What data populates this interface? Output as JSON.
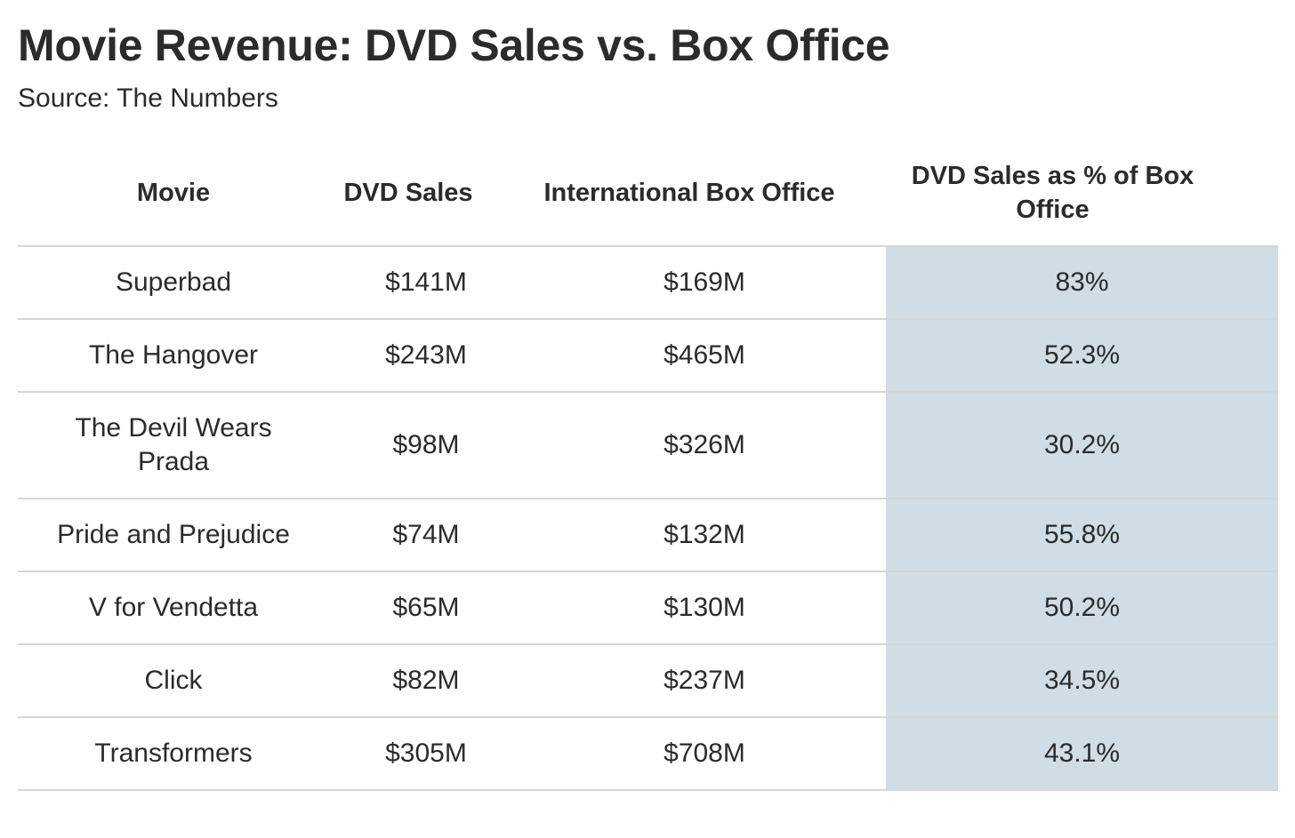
{
  "header": {
    "title": "Movie Revenue: DVD Sales vs. Box Office",
    "subtitle": "Source: The Numbers"
  },
  "table": {
    "columns": [
      "Movie",
      "DVD Sales",
      "International Box Office",
      "DVD Sales as % of Box Office"
    ],
    "rows": [
      {
        "movie": "Superbad",
        "dvd_sales": "$141M",
        "intl_box_office": "$169M",
        "pct": "83%"
      },
      {
        "movie": "The Hangover",
        "dvd_sales": "$243M",
        "intl_box_office": "$465M",
        "pct": "52.3%"
      },
      {
        "movie": "The Devil Wears Prada",
        "dvd_sales": "$98M",
        "intl_box_office": "$326M",
        "pct": "30.2%"
      },
      {
        "movie": "Pride and Prejudice",
        "dvd_sales": "$74M",
        "intl_box_office": "$132M",
        "pct": "55.8%"
      },
      {
        "movie": "V for Vendetta",
        "dvd_sales": "$65M",
        "intl_box_office": "$130M",
        "pct": "50.2%"
      },
      {
        "movie": "Click",
        "dvd_sales": "$82M",
        "intl_box_office": "$237M",
        "pct": "34.5%"
      },
      {
        "movie": "Transformers",
        "dvd_sales": "$305M",
        "intl_box_office": "$708M",
        "pct": "43.1%"
      }
    ]
  },
  "colors": {
    "highlight_column": "#d0dde4",
    "text": "#2b2b2b",
    "rule": "#d6d6d6"
  },
  "chart_data": {
    "type": "table",
    "title": "Movie Revenue: DVD Sales vs. Box Office",
    "subtitle": "Source: The Numbers",
    "columns": [
      "Movie",
      "DVD Sales",
      "International Box Office",
      "DVD Sales as % of Box Office"
    ],
    "categories": [
      "Superbad",
      "The Hangover",
      "The Devil Wears Prada",
      "Pride and Prejudice",
      "V for Vendetta",
      "Click",
      "Transformers"
    ],
    "series": [
      {
        "name": "DVD Sales ($M)",
        "values": [
          141,
          243,
          98,
          74,
          65,
          82,
          305
        ]
      },
      {
        "name": "International Box Office ($M)",
        "values": [
          169,
          465,
          326,
          132,
          130,
          237,
          708
        ]
      },
      {
        "name": "DVD Sales as % of Box Office",
        "values": [
          83,
          52.3,
          30.2,
          55.8,
          50.2,
          34.5,
          43.1
        ]
      }
    ]
  }
}
